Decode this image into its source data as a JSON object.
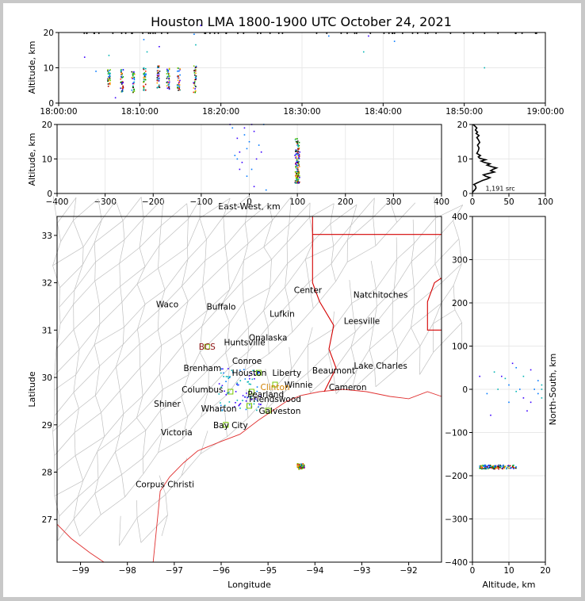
{
  "title": "Houston LMA 1800-1900 UTC October 24, 2021",
  "colors": {
    "border": "#c0c0c0",
    "axis": "#000000",
    "grid": "#e8e8e8",
    "county": "#c0c0c0",
    "state_line": "#d40000",
    "coast": "#e03030",
    "text": "#000000"
  },
  "chart_data": [
    {
      "panel": "altitude-vs-time",
      "type": "scatter",
      "ylabel": "Altitude, km",
      "ylim": [
        0,
        20
      ],
      "yticks": [
        "0",
        "10",
        "20"
      ],
      "xticks": [
        "18:00:00",
        "18:10:00",
        "18:20:00",
        "18:30:00",
        "18:40:00",
        "18:50:00",
        "19:00:00"
      ],
      "xlim_minutes": [
        0,
        60
      ],
      "grid": true,
      "clusters": [
        {
          "t": 6.2,
          "zmin": 4.5,
          "zmax": 9.5
        },
        {
          "t": 7.8,
          "zmin": 3.0,
          "zmax": 9.5
        },
        {
          "t": 9.2,
          "zmin": 3.0,
          "zmax": 9.0
        },
        {
          "t": 10.6,
          "zmin": 3.5,
          "zmax": 10.0
        },
        {
          "t": 12.3,
          "zmin": 3.5,
          "zmax": 10.5
        },
        {
          "t": 13.5,
          "zmin": 3.5,
          "zmax": 10.0
        },
        {
          "t": 14.8,
          "zmin": 3.5,
          "zmax": 10.0
        },
        {
          "t": 16.8,
          "zmin": 3.0,
          "zmax": 11.0
        }
      ],
      "isolated": [
        [
          3.2,
          13
        ],
        [
          4.6,
          9
        ],
        [
          6.2,
          13.5
        ],
        [
          7.0,
          1.5
        ],
        [
          10.5,
          18
        ],
        [
          10.9,
          14.5
        ],
        [
          12.4,
          16
        ],
        [
          16.7,
          19.5
        ],
        [
          16.9,
          16.5
        ],
        [
          17.5,
          22
        ],
        [
          33.3,
          19
        ],
        [
          37.6,
          14.5
        ],
        [
          38.2,
          19
        ],
        [
          41.4,
          17.5
        ],
        [
          52.5,
          10
        ]
      ]
    },
    {
      "panel": "altitude-vs-east-west",
      "type": "scatter",
      "xlabel": "East-West, km",
      "ylabel": "Altitude, km",
      "xlim": [
        -400,
        400
      ],
      "ylim": [
        0,
        20
      ],
      "xticks": [
        "−400",
        "−300",
        "−200",
        "−100",
        "0",
        "100",
        "200",
        "300",
        "400"
      ],
      "yticks": [
        "0",
        "10",
        "20"
      ],
      "grid": true,
      "clusters": [
        {
          "x": 100,
          "zmin": 3,
          "zmax": 16
        }
      ],
      "isolated": [
        [
          -25,
          16
        ],
        [
          -10,
          17
        ],
        [
          -20,
          12
        ],
        [
          -5,
          13
        ],
        [
          10,
          18
        ],
        [
          -30,
          11
        ],
        [
          -15,
          9
        ],
        [
          5,
          7
        ],
        [
          15,
          10
        ],
        [
          -35,
          19
        ],
        [
          -40,
          20
        ],
        [
          0,
          15
        ],
        [
          25,
          12
        ],
        [
          -5,
          5
        ],
        [
          10,
          2
        ],
        [
          35,
          1
        ],
        [
          -20,
          7
        ],
        [
          20,
          14
        ],
        [
          5,
          20
        ],
        [
          30,
          20
        ],
        [
          -10,
          19
        ],
        [
          -25,
          10
        ],
        [
          95,
          11
        ],
        [
          100,
          8
        ],
        [
          105,
          12
        ],
        [
          100,
          14
        ],
        [
          98,
          9
        ]
      ]
    },
    {
      "panel": "source-count-histogram",
      "type": "line",
      "xlim": [
        0,
        100
      ],
      "ylim": [
        0,
        20
      ],
      "xticks": [
        "0",
        "50",
        "100"
      ],
      "yticks": [
        "0",
        "10",
        "20"
      ],
      "annotation": "1,191 src",
      "x": [
        0,
        1,
        3,
        5,
        4,
        2,
        6,
        10,
        14,
        20,
        24,
        18,
        15,
        22,
        30,
        25,
        28,
        33,
        26,
        20,
        24,
        16,
        12,
        18,
        10,
        8,
        11,
        6,
        8,
        9,
        7,
        10,
        8,
        6,
        9,
        5,
        7,
        4,
        6,
        3,
        1
      ],
      "z": [
        0.2,
        0.6,
        1.0,
        1.6,
        2.2,
        2.6,
        3.0,
        3.4,
        3.8,
        4.2,
        4.6,
        5.0,
        5.4,
        5.8,
        6.2,
        6.6,
        7.0,
        7.4,
        7.8,
        8.2,
        8.6,
        9.0,
        9.4,
        9.8,
        10.2,
        10.6,
        11.0,
        11.6,
        12.4,
        13.2,
        14.0,
        14.8,
        15.6,
        16.2,
        16.8,
        17.4,
        17.8,
        18.4,
        19.0,
        19.6,
        20.0
      ]
    },
    {
      "panel": "plan-view-map",
      "type": "scatter",
      "xlabel": "Longitude",
      "ylabel": "Latitude",
      "xlim": [
        -99.5,
        -91.3
      ],
      "ylim": [
        26.1,
        33.4
      ],
      "xticks": [
        "−99",
        "−98",
        "−97",
        "−96",
        "−95",
        "−94",
        "−93",
        "−92"
      ],
      "yticks": [
        "27",
        "28",
        "29",
        "30",
        "31",
        "32",
        "33"
      ],
      "cities": [
        {
          "name": "Waco",
          "lon": -97.15,
          "lat": 31.55
        },
        {
          "name": "Buffalo",
          "lon": -96.0,
          "lat": 31.5
        },
        {
          "name": "Center",
          "lon": -94.15,
          "lat": 31.85
        },
        {
          "name": "Natchitoches",
          "lon": -92.6,
          "lat": 31.75
        },
        {
          "name": "Lufkin",
          "lon": -94.7,
          "lat": 31.35
        },
        {
          "name": "Leesville",
          "lon": -93.0,
          "lat": 31.2
        },
        {
          "name": "Onalaska",
          "lon": -95.0,
          "lat": 30.85
        },
        {
          "name": "Huntsville",
          "lon": -95.5,
          "lat": 30.75
        },
        {
          "name": "BCS",
          "lon": -96.3,
          "lat": 30.65
        },
        {
          "name": "Conroe",
          "lon": -95.45,
          "lat": 30.35
        },
        {
          "name": "Lake Charles",
          "lon": -92.6,
          "lat": 30.25
        },
        {
          "name": "Brenham",
          "lon": -96.4,
          "lat": 30.2
        },
        {
          "name": "Beaumont",
          "lon": -93.6,
          "lat": 30.15
        },
        {
          "name": "Liberty",
          "lon": -94.6,
          "lat": 30.1
        },
        {
          "name": "Houston",
          "lon": -95.4,
          "lat": 30.1
        },
        {
          "name": "Winnie",
          "lon": -94.35,
          "lat": 29.85
        },
        {
          "name": "Cameron",
          "lon": -93.3,
          "lat": 29.8
        },
        {
          "name": "Columbus",
          "lon": -96.4,
          "lat": 29.75
        },
        {
          "name": "Clinton",
          "lon": -94.85,
          "lat": 29.8
        },
        {
          "name": "Friendswood",
          "lon": -94.85,
          "lat": 29.55
        },
        {
          "name": "Pearland",
          "lon": -95.05,
          "lat": 29.65
        },
        {
          "name": "Shiner",
          "lon": -97.15,
          "lat": 29.45
        },
        {
          "name": "Galveston",
          "lon": -94.75,
          "lat": 29.3
        },
        {
          "name": "Wharton",
          "lon": -96.05,
          "lat": 29.35
        },
        {
          "name": "Victoria",
          "lon": -96.95,
          "lat": 28.85
        },
        {
          "name": "Bay City",
          "lon": -95.8,
          "lat": 29.0
        },
        {
          "name": "Corpus Christi",
          "lon": -97.2,
          "lat": 27.75
        }
      ],
      "storm": {
        "lon": -94.3,
        "lat": 28.12
      },
      "stations": [
        [
          -96.3,
          30.65
        ],
        [
          -95.9,
          29.0
        ],
        [
          -95.4,
          29.4
        ],
        [
          -95.8,
          29.7
        ],
        [
          -95.0,
          29.3
        ],
        [
          -95.2,
          30.1
        ],
        [
          -95.35,
          29.7
        ],
        [
          -94.85,
          29.85
        ]
      ]
    },
    {
      "panel": "north-south-vs-altitude",
      "type": "scatter",
      "xlabel": "Altitude, km",
      "ylabel": "North-South, km",
      "xlim": [
        0,
        20
      ],
      "ylim": [
        -400,
        400
      ],
      "xticks": [
        "0",
        "10",
        "20"
      ],
      "yticks": [
        "−400",
        "−300",
        "−200",
        "−100",
        "0",
        "100",
        "200",
        "300",
        "400"
      ],
      "grid": true,
      "clusters": [
        {
          "y": -180,
          "zmin": 2,
          "zmax": 12
        }
      ],
      "isolated": [
        [
          8,
          30
        ],
        [
          10,
          10
        ],
        [
          12,
          -5
        ],
        [
          14,
          -20
        ],
        [
          18,
          20
        ],
        [
          19,
          10
        ],
        [
          16,
          -30
        ],
        [
          4,
          -10
        ],
        [
          6,
          40
        ],
        [
          11,
          60
        ],
        [
          13,
          0
        ],
        [
          7,
          0
        ],
        [
          15,
          -50
        ],
        [
          17,
          0
        ],
        [
          9,
          25
        ],
        [
          2,
          30
        ],
        [
          12,
          50
        ],
        [
          19,
          -20
        ],
        [
          5,
          -60
        ],
        [
          18,
          -10
        ],
        [
          14,
          30
        ],
        [
          16,
          45
        ],
        [
          10,
          -30
        ],
        [
          19,
          0
        ]
      ]
    }
  ]
}
